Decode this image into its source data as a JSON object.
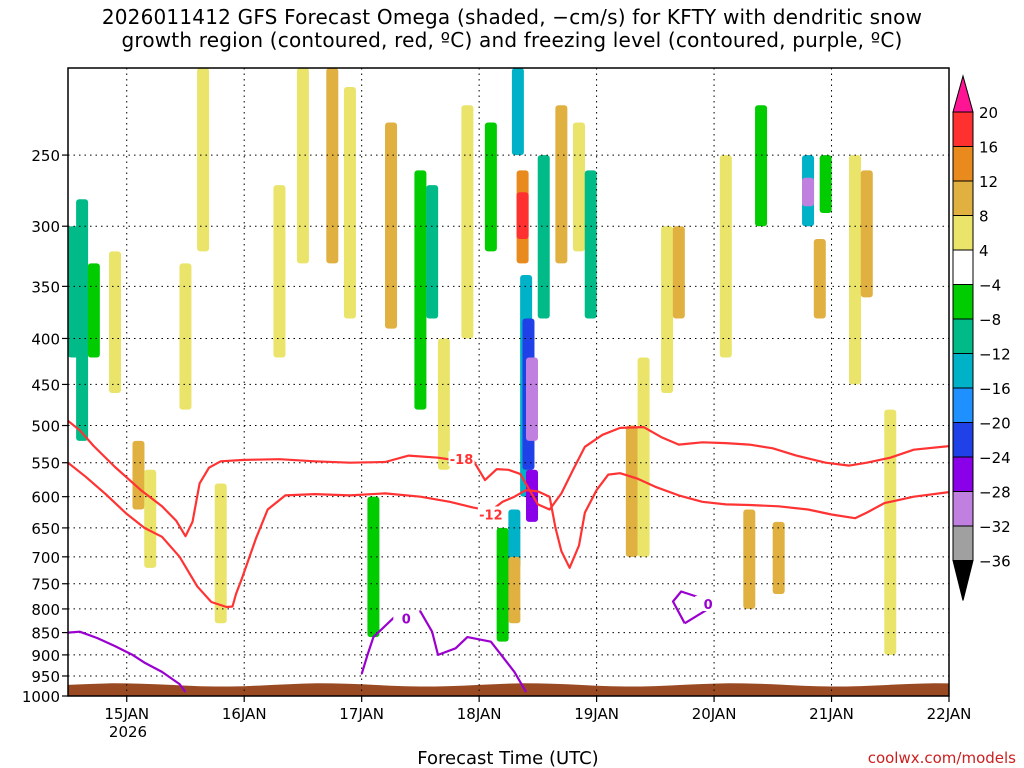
{
  "colors": {
    "red_contour": "#ff3333",
    "purple_contour": "#9a00d0",
    "ground": "#9a4a22",
    "grid": "#000000",
    "credit": "#cc2020"
  },
  "chart_data": {
    "type": "heatmap",
    "title_lines": [
      "2026011412 GFS Forecast Omega (shaded, −cm/s) for KFTY with dendritic snow",
      "growth region (contoured, red, ºC) and freezing level (contoured, purple, ºC)"
    ],
    "xlabel": "Forecast Time (UTC)",
    "ylabel": "",
    "credit": "coolwx.com/models",
    "x_ticks": [
      "15JAN",
      "16JAN",
      "17JAN",
      "18JAN",
      "19JAN",
      "20JAN",
      "21JAN",
      "22JAN"
    ],
    "x_year": "2026",
    "x_range_days": [
      14.5,
      22.0
    ],
    "y_ticks": [
      "250",
      "300",
      "350",
      "400",
      "450",
      "500",
      "550",
      "600",
      "650",
      "700",
      "750",
      "800",
      "850",
      "900",
      "950",
      "1000"
    ],
    "y_range_hpa": [
      200,
      1000
    ],
    "y_scale": "log",
    "colorbar": {
      "levels": [
        -36,
        -32,
        -28,
        -24,
        -20,
        -16,
        -12,
        -8,
        -4,
        4,
        8,
        12,
        16,
        20
      ],
      "labels": [
        "20",
        "16",
        "12",
        "8",
        "4",
        "−4",
        "−8",
        "−12",
        "−16",
        "−20",
        "−24",
        "−28",
        "−32",
        "−36"
      ],
      "colors": [
        "#ff1493",
        "#ff3030",
        "#e88a1e",
        "#e0b040",
        "#eae46a",
        "#ffffff",
        "#00cc00",
        "#00bb88",
        "#00b2c8",
        "#1e90ff",
        "#2040e8",
        "#8a00e8",
        "#c080e0",
        "#a0a0a0",
        "#000000"
      ]
    },
    "shaded_cells": [
      {
        "t": 14.55,
        "p1": 300,
        "p2": 420,
        "value": -10
      },
      {
        "t": 14.62,
        "p1": 280,
        "p2": 520,
        "value": -9
      },
      {
        "t": 14.72,
        "p1": 330,
        "p2": 420,
        "value": -6
      },
      {
        "t": 14.9,
        "p1": 320,
        "p2": 460,
        "value": 5
      },
      {
        "t": 15.1,
        "p1": 520,
        "p2": 620,
        "value": 9
      },
      {
        "t": 15.2,
        "p1": 560,
        "p2": 720,
        "value": 6
      },
      {
        "t": 15.5,
        "p1": 330,
        "p2": 480,
        "value": 5
      },
      {
        "t": 15.65,
        "p1": 200,
        "p2": 320,
        "value": 6
      },
      {
        "t": 15.8,
        "p1": 580,
        "p2": 830,
        "value": 7
      },
      {
        "t": 16.3,
        "p1": 270,
        "p2": 420,
        "value": 6
      },
      {
        "t": 16.5,
        "p1": 200,
        "p2": 330,
        "value": 5
      },
      {
        "t": 16.75,
        "p1": 200,
        "p2": 330,
        "value": 9
      },
      {
        "t": 16.9,
        "p1": 210,
        "p2": 380,
        "value": 6
      },
      {
        "t": 17.1,
        "p1": 600,
        "p2": 860,
        "value": -7
      },
      {
        "t": 17.25,
        "p1": 230,
        "p2": 390,
        "value": 9
      },
      {
        "t": 17.5,
        "p1": 260,
        "p2": 480,
        "value": -8
      },
      {
        "t": 17.6,
        "p1": 270,
        "p2": 380,
        "value": -10
      },
      {
        "t": 17.7,
        "p1": 400,
        "p2": 560,
        "value": 5
      },
      {
        "t": 17.9,
        "p1": 220,
        "p2": 400,
        "value": 6
      },
      {
        "t": 18.1,
        "p1": 230,
        "p2": 320,
        "value": -7
      },
      {
        "t": 18.2,
        "p1": 650,
        "p2": 870,
        "value": -8
      },
      {
        "t": 18.3,
        "p1": 620,
        "p2": 720,
        "value": -14
      },
      {
        "t": 18.3,
        "p1": 700,
        "p2": 830,
        "value": 9
      },
      {
        "t": 18.33,
        "p1": 200,
        "p2": 250,
        "value": -14
      },
      {
        "t": 18.37,
        "p1": 260,
        "p2": 330,
        "value": 14
      },
      {
        "t": 18.37,
        "p1": 275,
        "p2": 310,
        "value": 19
      },
      {
        "t": 18.4,
        "p1": 340,
        "p2": 600,
        "value": -14
      },
      {
        "t": 18.42,
        "p1": 380,
        "p2": 560,
        "value": -22
      },
      {
        "t": 18.45,
        "p1": 420,
        "p2": 520,
        "value": -30
      },
      {
        "t": 18.45,
        "p1": 560,
        "p2": 640,
        "value": -26
      },
      {
        "t": 18.55,
        "p1": 250,
        "p2": 380,
        "value": -9
      },
      {
        "t": 18.7,
        "p1": 220,
        "p2": 330,
        "value": 9
      },
      {
        "t": 18.85,
        "p1": 230,
        "p2": 320,
        "value": 6
      },
      {
        "t": 18.95,
        "p1": 260,
        "p2": 380,
        "value": -9
      },
      {
        "t": 19.3,
        "p1": 500,
        "p2": 700,
        "value": 9
      },
      {
        "t": 19.4,
        "p1": 420,
        "p2": 700,
        "value": 5
      },
      {
        "t": 19.6,
        "p1": 300,
        "p2": 460,
        "value": 5
      },
      {
        "t": 19.7,
        "p1": 300,
        "p2": 380,
        "value": 9
      },
      {
        "t": 20.1,
        "p1": 250,
        "p2": 420,
        "value": 5
      },
      {
        "t": 20.3,
        "p1": 620,
        "p2": 800,
        "value": 9
      },
      {
        "t": 20.4,
        "p1": 220,
        "p2": 300,
        "value": -8
      },
      {
        "t": 20.55,
        "p1": 640,
        "p2": 770,
        "value": 9
      },
      {
        "t": 20.8,
        "p1": 250,
        "p2": 300,
        "value": -15
      },
      {
        "t": 20.8,
        "p1": 265,
        "p2": 285,
        "value": -31
      },
      {
        "t": 20.9,
        "p1": 310,
        "p2": 380,
        "value": 9
      },
      {
        "t": 20.95,
        "p1": 250,
        "p2": 290,
        "value": -8
      },
      {
        "t": 21.2,
        "p1": 250,
        "p2": 450,
        "value": 5
      },
      {
        "t": 21.3,
        "p1": 260,
        "p2": 360,
        "value": 9
      },
      {
        "t": 21.5,
        "p1": 480,
        "p2": 900,
        "value": 5
      }
    ],
    "contours": [
      {
        "name": "dgz -18C",
        "label": "-18",
        "color": "#ff3333",
        "points": [
          [
            14.5,
            494
          ],
          [
            14.6,
            506
          ],
          [
            14.72,
            527
          ],
          [
            14.9,
            556
          ],
          [
            15.12,
            590
          ],
          [
            15.3,
            615
          ],
          [
            15.42,
            638
          ],
          [
            15.5,
            664
          ],
          [
            15.56,
            640
          ],
          [
            15.62,
            580
          ],
          [
            15.7,
            557
          ],
          [
            15.8,
            548
          ],
          [
            16.0,
            546
          ],
          [
            16.3,
            545
          ],
          [
            16.6,
            548
          ],
          [
            16.9,
            550
          ],
          [
            17.2,
            549
          ],
          [
            17.4,
            540
          ],
          [
            17.65,
            543
          ],
          [
            17.82,
            547
          ],
          [
            17.95,
            547
          ],
          [
            18.05,
            575
          ],
          [
            18.15,
            559
          ],
          [
            18.25,
            560
          ],
          [
            18.35,
            566
          ],
          [
            18.5,
            612
          ],
          [
            18.6,
            620
          ],
          [
            18.7,
            595
          ],
          [
            18.8,
            560
          ],
          [
            18.9,
            528
          ],
          [
            19.05,
            512
          ],
          [
            19.2,
            503
          ],
          [
            19.4,
            502
          ],
          [
            19.55,
            515
          ],
          [
            19.7,
            525
          ],
          [
            19.9,
            522
          ],
          [
            20.1,
            523
          ],
          [
            20.3,
            525
          ],
          [
            20.5,
            530
          ],
          [
            20.7,
            540
          ],
          [
            20.95,
            550
          ],
          [
            21.15,
            554
          ],
          [
            21.3,
            550
          ],
          [
            21.5,
            543
          ],
          [
            21.7,
            532
          ],
          [
            22.0,
            527
          ]
        ],
        "label_at": [
          17.85,
          545
        ]
      },
      {
        "name": "dgz -12C",
        "label": "-12",
        "color": "#ff3333",
        "points": [
          [
            14.5,
            550
          ],
          [
            14.65,
            570
          ],
          [
            14.82,
            596
          ],
          [
            15.0,
            627
          ],
          [
            15.15,
            650
          ],
          [
            15.3,
            665
          ],
          [
            15.45,
            700
          ],
          [
            15.6,
            755
          ],
          [
            15.72,
            786
          ],
          [
            15.85,
            796
          ],
          [
            15.9,
            795
          ],
          [
            15.93,
            770
          ],
          [
            15.98,
            740
          ],
          [
            16.1,
            668
          ],
          [
            16.2,
            620
          ],
          [
            16.35,
            598
          ],
          [
            16.6,
            596
          ],
          [
            16.9,
            598
          ],
          [
            17.2,
            595
          ],
          [
            17.5,
            600
          ],
          [
            17.75,
            608
          ],
          [
            17.95,
            617
          ],
          [
            18.1,
            622
          ],
          [
            18.2,
            608
          ],
          [
            18.3,
            600
          ],
          [
            18.4,
            590
          ],
          [
            18.5,
            592
          ],
          [
            18.6,
            600
          ],
          [
            18.65,
            650
          ],
          [
            18.7,
            690
          ],
          [
            18.77,
            720
          ],
          [
            18.85,
            680
          ],
          [
            18.9,
            625
          ],
          [
            19.0,
            590
          ],
          [
            19.1,
            567
          ],
          [
            19.2,
            565
          ],
          [
            19.35,
            573
          ],
          [
            19.5,
            585
          ],
          [
            19.7,
            598
          ],
          [
            19.9,
            608
          ],
          [
            20.1,
            612
          ],
          [
            20.3,
            613
          ],
          [
            20.55,
            615
          ],
          [
            20.8,
            620
          ],
          [
            21.0,
            628
          ],
          [
            21.2,
            634
          ],
          [
            21.3,
            625
          ],
          [
            21.45,
            610
          ],
          [
            21.7,
            600
          ],
          [
            22.0,
            593
          ]
        ],
        "label_at": [
          18.1,
          628
        ]
      },
      {
        "name": "freezing level 0C (left)",
        "label": "",
        "color": "#9a00d0",
        "points": [
          [
            14.5,
            850
          ],
          [
            14.6,
            848
          ],
          [
            14.75,
            862
          ],
          [
            14.9,
            880
          ],
          [
            15.05,
            900
          ],
          [
            15.15,
            918
          ],
          [
            15.3,
            940
          ],
          [
            15.45,
            970
          ],
          [
            15.5,
            990
          ]
        ]
      },
      {
        "name": "freezing level 0C (17JAN)",
        "label": "0",
        "color": "#9a00d0",
        "points": [
          [
            17.0,
            945
          ],
          [
            17.05,
            900
          ],
          [
            17.1,
            860
          ],
          [
            17.3,
            812
          ],
          [
            17.5,
            805
          ],
          [
            17.6,
            848
          ],
          [
            17.65,
            900
          ],
          [
            17.8,
            885
          ],
          [
            17.9,
            860
          ],
          [
            18.1,
            870
          ],
          [
            18.3,
            940
          ],
          [
            18.4,
            990
          ]
        ],
        "label_at": [
          17.38,
          820
        ]
      },
      {
        "name": "freezing level 0C (20JAN)",
        "label": "0",
        "color": "#9a00d0",
        "points": [
          [
            19.75,
            830
          ],
          [
            19.65,
            785
          ],
          [
            19.72,
            765
          ],
          [
            19.85,
            775
          ],
          [
            19.95,
            800
          ],
          [
            19.75,
            830
          ]
        ],
        "label_at": [
          19.95,
          790
        ]
      }
    ]
  }
}
